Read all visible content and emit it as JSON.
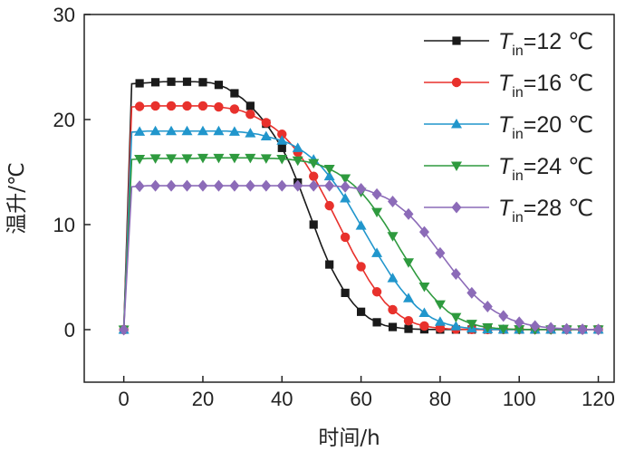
{
  "chart_data": {
    "type": "line",
    "xlabel": "时间/h",
    "ylabel": "温升/℃",
    "xlim": [
      -10,
      124
    ],
    "ylim": [
      -5,
      30
    ],
    "xticks": [
      0,
      20,
      40,
      60,
      80,
      100,
      120
    ],
    "yticks": [
      0,
      10,
      20,
      30
    ],
    "x": [
      0,
      2,
      4,
      6,
      8,
      10,
      12,
      14,
      16,
      18,
      20,
      22,
      24,
      26,
      28,
      30,
      32,
      34,
      36,
      38,
      40,
      42,
      44,
      46,
      48,
      50,
      52,
      54,
      56,
      58,
      60,
      62,
      64,
      66,
      68,
      70,
      72,
      74,
      76,
      78,
      80,
      82,
      84,
      86,
      88,
      90,
      92,
      94,
      96,
      98,
      100,
      102,
      104,
      106,
      108,
      110,
      112,
      114,
      116,
      118,
      120
    ],
    "legend_position": "top-right",
    "series": [
      {
        "name": "Tin=12 ℃",
        "legend": {
          "symbol": "T",
          "sub": "in",
          "rest": "=12 ℃"
        },
        "color": "#1a1a1a",
        "marker": "square",
        "marker_every": 2,
        "values": [
          0,
          23.4,
          23.45,
          23.5,
          23.55,
          23.6,
          23.6,
          23.6,
          23.6,
          23.6,
          23.55,
          23.5,
          23.3,
          23.0,
          22.5,
          22.0,
          21.3,
          20.5,
          19.6,
          18.5,
          17.3,
          15.8,
          14.0,
          12.0,
          10.0,
          8.0,
          6.2,
          4.8,
          3.5,
          2.5,
          1.7,
          1.1,
          0.7,
          0.4,
          0.25,
          0.15,
          0.08,
          0.05,
          0.03,
          0.02,
          0.01,
          0.01,
          0.01,
          0.01,
          0.01,
          0.01,
          0.01,
          0.01,
          0.01,
          0.01,
          0.01,
          0.01,
          0.01,
          0.01,
          0.01,
          0.01,
          0.01,
          0.01,
          0.01,
          0.01,
          0.01
        ]
      },
      {
        "name": "Tin=16 ℃",
        "legend": {
          "symbol": "T",
          "sub": "in",
          "rest": "=16 ℃"
        },
        "color": "#e8312c",
        "marker": "circle",
        "marker_every": 2,
        "values": [
          0,
          21.2,
          21.25,
          21.3,
          21.3,
          21.3,
          21.3,
          21.3,
          21.3,
          21.3,
          21.3,
          21.3,
          21.2,
          21.1,
          21.0,
          20.8,
          20.5,
          20.1,
          19.7,
          19.2,
          18.6,
          17.8,
          16.9,
          15.8,
          14.6,
          13.2,
          11.8,
          10.3,
          8.8,
          7.3,
          6.0,
          4.7,
          3.6,
          2.6,
          1.9,
          1.3,
          0.85,
          0.55,
          0.35,
          0.22,
          0.14,
          0.08,
          0.05,
          0.03,
          0.02,
          0.01,
          0.01,
          0.01,
          0.01,
          0.01,
          0.01,
          0.01,
          0.01,
          0.01,
          0.01,
          0.01,
          0.01,
          0.01,
          0.01,
          0.01,
          0.01
        ]
      },
      {
        "name": "Tin=20 ℃",
        "legend": {
          "symbol": "T",
          "sub": "in",
          "rest": "=20 ℃"
        },
        "color": "#2196cc",
        "marker": "triangle-up",
        "marker_every": 2,
        "values": [
          0,
          18.8,
          18.85,
          18.9,
          18.9,
          18.9,
          18.9,
          18.9,
          18.9,
          18.9,
          18.9,
          18.9,
          18.9,
          18.9,
          18.85,
          18.8,
          18.7,
          18.6,
          18.4,
          18.2,
          18.0,
          17.7,
          17.3,
          16.8,
          16.2,
          15.5,
          14.6,
          13.6,
          12.5,
          11.2,
          9.9,
          8.6,
          7.3,
          6.1,
          4.9,
          3.9,
          3.0,
          2.2,
          1.6,
          1.1,
          0.75,
          0.5,
          0.32,
          0.2,
          0.12,
          0.07,
          0.04,
          0.02,
          0.01,
          0.01,
          0.01,
          0.01,
          0.01,
          0.01,
          0.01,
          0.01,
          0.01,
          0.01,
          0.01,
          0.01,
          0.01
        ]
      },
      {
        "name": "Tin=24 ℃",
        "legend": {
          "symbol": "T",
          "sub": "in",
          "rest": "=24 ℃"
        },
        "color": "#2e9a3e",
        "marker": "triangle-down",
        "marker_every": 2,
        "values": [
          0,
          16.2,
          16.25,
          16.3,
          16.3,
          16.3,
          16.3,
          16.3,
          16.3,
          16.3,
          16.35,
          16.35,
          16.35,
          16.35,
          16.35,
          16.35,
          16.35,
          16.3,
          16.3,
          16.3,
          16.25,
          16.2,
          16.1,
          16.0,
          15.85,
          15.6,
          15.3,
          14.9,
          14.4,
          13.8,
          13.1,
          12.2,
          11.2,
          10.1,
          8.9,
          7.6,
          6.4,
          5.2,
          4.1,
          3.2,
          2.4,
          1.7,
          1.2,
          0.85,
          0.55,
          0.35,
          0.22,
          0.14,
          0.08,
          0.05,
          0.03,
          0.02,
          0.01,
          0.01,
          0.01,
          0.01,
          0.01,
          0.01,
          0.01,
          0.01,
          0.01
        ]
      },
      {
        "name": "Tin=28 ℃",
        "legend": {
          "symbol": "T",
          "sub": "in",
          "rest": "=28 ℃"
        },
        "color": "#8c6bb8",
        "marker": "diamond",
        "marker_every": 2,
        "values": [
          0,
          13.6,
          13.65,
          13.7,
          13.7,
          13.7,
          13.7,
          13.7,
          13.7,
          13.7,
          13.7,
          13.7,
          13.7,
          13.7,
          13.7,
          13.7,
          13.7,
          13.7,
          13.7,
          13.7,
          13.7,
          13.7,
          13.7,
          13.7,
          13.7,
          13.7,
          13.7,
          13.65,
          13.6,
          13.5,
          13.4,
          13.2,
          12.9,
          12.6,
          12.2,
          11.6,
          11.0,
          10.2,
          9.3,
          8.3,
          7.3,
          6.3,
          5.3,
          4.4,
          3.5,
          2.8,
          2.2,
          1.7,
          1.3,
          0.95,
          0.7,
          0.5,
          0.35,
          0.25,
          0.17,
          0.12,
          0.08,
          0.05,
          0.03,
          0.02,
          0.01
        ]
      }
    ]
  }
}
